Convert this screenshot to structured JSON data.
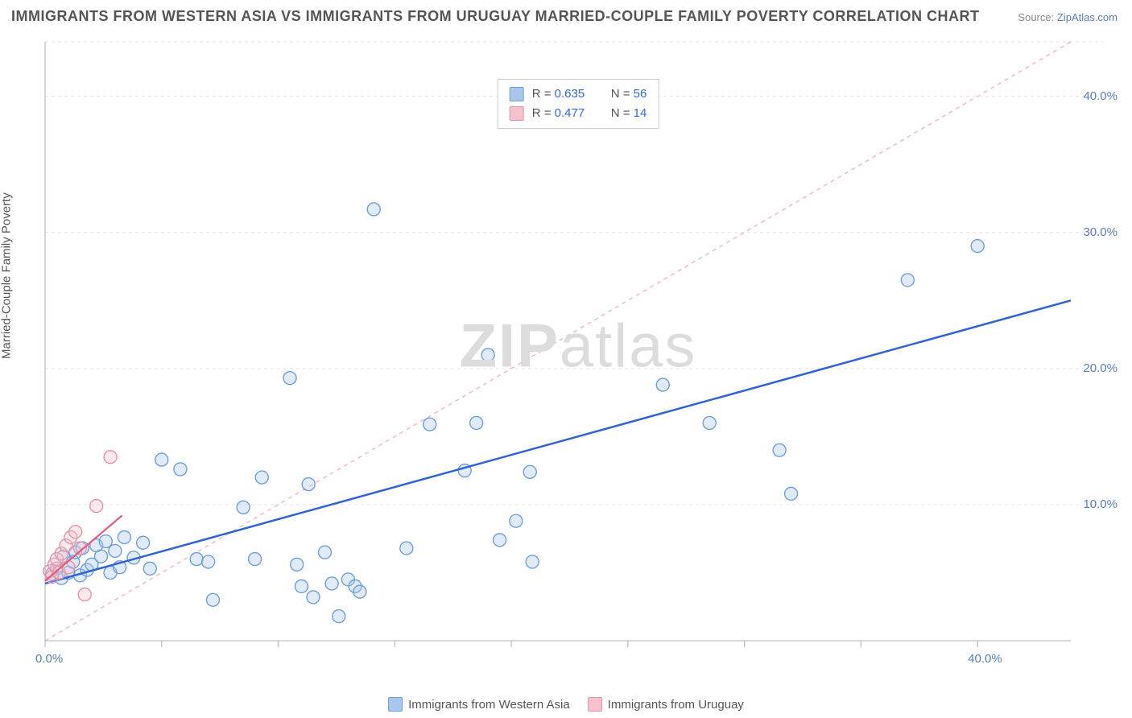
{
  "title": "IMMIGRANTS FROM WESTERN ASIA VS IMMIGRANTS FROM URUGUAY MARRIED-COUPLE FAMILY POVERTY CORRELATION CHART",
  "source_label": "Source:",
  "source_value": "ZipAtlas.com",
  "ylabel": "Married-Couple Family Poverty",
  "watermark_a": "ZIP",
  "watermark_b": "atlas",
  "chart": {
    "type": "scatter",
    "xlim": [
      0,
      44
    ],
    "ylim": [
      0,
      44
    ],
    "x_ticks": [
      0,
      5,
      10,
      15,
      20,
      25,
      30,
      35,
      40
    ],
    "x_tick_labels": {
      "0": "0.0%",
      "40": "40.0%"
    },
    "y_ticks": [
      10,
      20,
      30,
      40
    ],
    "y_tick_labels": {
      "10": "10.0%",
      "20": "20.0%",
      "30": "30.0%",
      "40": "40.0%"
    },
    "grid_color": "#e2e2e2",
    "grid_dash": "4,4",
    "axis_color": "#bfbfbf",
    "background_color": "#ffffff",
    "marker_radius": 8,
    "marker_stroke_width": 1.4,
    "marker_fill_opacity": 0.35,
    "diagonal": {
      "color": "#f2aab5",
      "dash": "5,5",
      "width": 1.2
    },
    "series": [
      {
        "name": "Immigrants from Western Asia",
        "color_fill": "#a9c7ea",
        "color_stroke": "#6f9fd8",
        "trend_color": "#2f63d6",
        "trend_width": 2.5,
        "R": "0.635",
        "N": "56",
        "trend": {
          "x1": 0,
          "y1": 4.2,
          "x2": 44,
          "y2": 25.0
        },
        "points": [
          [
            0.3,
            4.9
          ],
          [
            0.5,
            5.3
          ],
          [
            0.7,
            4.6
          ],
          [
            0.8,
            6.2
          ],
          [
            1.0,
            5.0
          ],
          [
            1.2,
            5.8
          ],
          [
            1.3,
            6.5
          ],
          [
            1.5,
            4.8
          ],
          [
            1.6,
            6.8
          ],
          [
            1.8,
            5.2
          ],
          [
            2.0,
            5.6
          ],
          [
            2.2,
            7.0
          ],
          [
            2.4,
            6.2
          ],
          [
            2.6,
            7.3
          ],
          [
            2.8,
            5.0
          ],
          [
            3.0,
            6.6
          ],
          [
            3.2,
            5.4
          ],
          [
            3.4,
            7.6
          ],
          [
            3.8,
            6.1
          ],
          [
            4.2,
            7.2
          ],
          [
            4.5,
            5.3
          ],
          [
            5.0,
            13.3
          ],
          [
            5.8,
            12.6
          ],
          [
            6.5,
            6.0
          ],
          [
            7.0,
            5.8
          ],
          [
            7.2,
            3.0
          ],
          [
            8.5,
            9.8
          ],
          [
            9.0,
            6.0
          ],
          [
            9.3,
            12.0
          ],
          [
            10.5,
            19.3
          ],
          [
            10.8,
            5.6
          ],
          [
            11.0,
            4.0
          ],
          [
            11.3,
            11.5
          ],
          [
            11.5,
            3.2
          ],
          [
            12.0,
            6.5
          ],
          [
            12.3,
            4.2
          ],
          [
            12.6,
            1.8
          ],
          [
            13.0,
            4.5
          ],
          [
            13.3,
            4.0
          ],
          [
            13.5,
            3.6
          ],
          [
            14.1,
            31.7
          ],
          [
            15.5,
            6.8
          ],
          [
            16.5,
            15.9
          ],
          [
            18.0,
            12.5
          ],
          [
            18.5,
            16.0
          ],
          [
            19.0,
            21.0
          ],
          [
            19.5,
            7.4
          ],
          [
            20.2,
            8.8
          ],
          [
            20.8,
            12.4
          ],
          [
            20.9,
            5.8
          ],
          [
            26.5,
            18.8
          ],
          [
            28.5,
            16.0
          ],
          [
            31.5,
            14.0
          ],
          [
            32.0,
            10.8
          ],
          [
            37.0,
            26.5
          ],
          [
            40.0,
            29.0
          ]
        ]
      },
      {
        "name": "Immigrants from Uruguay",
        "color_fill": "#f3c2cc",
        "color_stroke": "#e793a6",
        "trend_color": "#e75a7c",
        "trend_width": 2.2,
        "R": "0.477",
        "N": "14",
        "trend": {
          "x1": 0,
          "y1": 4.4,
          "x2": 3.3,
          "y2": 9.2
        },
        "points": [
          [
            0.2,
            5.1
          ],
          [
            0.3,
            4.7
          ],
          [
            0.4,
            5.6
          ],
          [
            0.5,
            6.0
          ],
          [
            0.6,
            5.0
          ],
          [
            0.7,
            6.4
          ],
          [
            0.9,
            7.0
          ],
          [
            1.0,
            5.4
          ],
          [
            1.1,
            7.6
          ],
          [
            1.3,
            8.0
          ],
          [
            1.5,
            6.8
          ],
          [
            1.7,
            3.4
          ],
          [
            2.2,
            9.9
          ],
          [
            2.8,
            13.5
          ]
        ]
      }
    ]
  },
  "legend_labels": {
    "R": "R =",
    "N": "N ="
  }
}
